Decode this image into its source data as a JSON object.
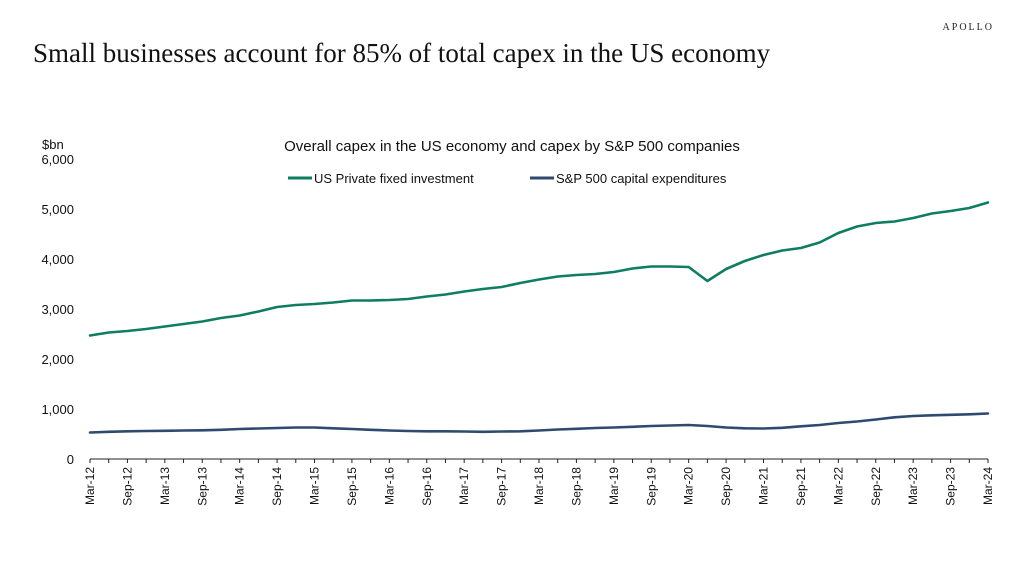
{
  "brand": "APOLLO",
  "headline": "Small businesses account for 85% of  total capex in the US economy",
  "chart_data": {
    "type": "line",
    "title": "Overall capex in the US economy and capex by S&P 500 companies",
    "ylabel": "$bn",
    "ylim": [
      0,
      6000
    ],
    "yticks": [
      "0",
      "1,000",
      "2,000",
      "3,000",
      "4,000",
      "5,000",
      "6,000"
    ],
    "ytick_values": [
      0,
      1000,
      2000,
      3000,
      4000,
      5000,
      6000
    ],
    "grid": false,
    "legend_position": "top-center",
    "x": [
      "Mar-12",
      "Jun-12",
      "Sep-12",
      "Dec-12",
      "Mar-13",
      "Jun-13",
      "Sep-13",
      "Dec-13",
      "Mar-14",
      "Jun-14",
      "Sep-14",
      "Dec-14",
      "Mar-15",
      "Jun-15",
      "Sep-15",
      "Dec-15",
      "Mar-16",
      "Jun-16",
      "Sep-16",
      "Dec-16",
      "Mar-17",
      "Jun-17",
      "Sep-17",
      "Dec-17",
      "Mar-18",
      "Jun-18",
      "Sep-18",
      "Dec-18",
      "Mar-19",
      "Jun-19",
      "Sep-19",
      "Dec-19",
      "Mar-20",
      "Jun-20",
      "Sep-20",
      "Dec-20",
      "Mar-21",
      "Jun-21",
      "Sep-21",
      "Dec-21",
      "Mar-22",
      "Jun-22",
      "Sep-22",
      "Dec-22",
      "Mar-23",
      "Jun-23",
      "Sep-23",
      "Dec-23",
      "Mar-24"
    ],
    "series": [
      {
        "name": "US Private fixed investment",
        "color": "#0e7d61",
        "values": [
          2470,
          2530,
          2560,
          2600,
          2650,
          2700,
          2750,
          2820,
          2870,
          2950,
          3040,
          3080,
          3100,
          3130,
          3170,
          3170,
          3180,
          3200,
          3250,
          3290,
          3350,
          3400,
          3440,
          3520,
          3590,
          3650,
          3680,
          3700,
          3740,
          3810,
          3850,
          3850,
          3840,
          3560,
          3800,
          3960,
          4080,
          4170,
          4220,
          4330,
          4520,
          4650,
          4720,
          4750,
          4820,
          4910,
          4960,
          5020,
          5130
        ]
      },
      {
        "name": "S&P 500 capital expenditures",
        "color": "#2e4a6e",
        "values": [
          530,
          545,
          555,
          560,
          565,
          570,
          575,
          585,
          600,
          610,
          620,
          630,
          630,
          615,
          600,
          585,
          570,
          560,
          555,
          555,
          550,
          545,
          550,
          555,
          570,
          590,
          605,
          620,
          630,
          645,
          660,
          670,
          680,
          660,
          630,
          615,
          610,
          625,
          655,
          680,
          720,
          750,
          790,
          835,
          860,
          875,
          885,
          895,
          910
        ]
      }
    ]
  }
}
